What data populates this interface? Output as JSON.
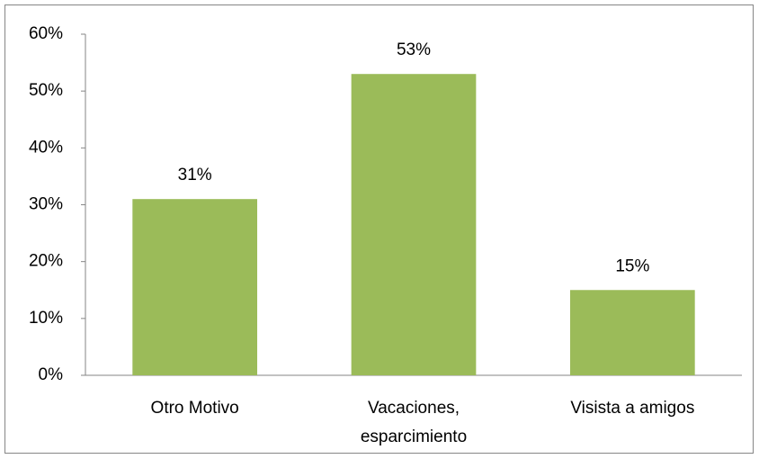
{
  "chart_data": {
    "type": "bar",
    "categories": [
      "Otro Motivo",
      "Vacaciones, esparcimiento",
      "Visista a amigos"
    ],
    "values": [
      31,
      53,
      15
    ],
    "value_labels": [
      "31%",
      "53%",
      "15%"
    ],
    "color": "#9bbb59",
    "ylim": [
      0,
      60
    ],
    "yticks": [
      {
        "value": 0,
        "label": "0%"
      },
      {
        "value": 10,
        "label": "10%"
      },
      {
        "value": 20,
        "label": "20%"
      },
      {
        "value": 30,
        "label": "30%"
      },
      {
        "value": 40,
        "label": "40%"
      },
      {
        "value": 50,
        "label": "50%"
      },
      {
        "value": 60,
        "label": "60%"
      }
    ],
    "grid": false
  }
}
